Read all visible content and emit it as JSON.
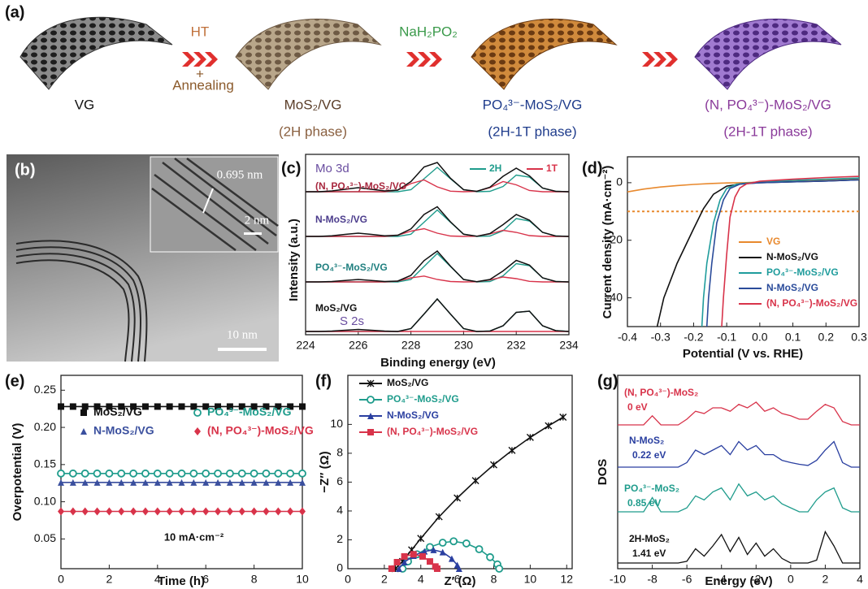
{
  "scheme": {
    "label": "(a)",
    "steps": [
      {
        "name": "VG"
      },
      {
        "name": "MoS₂/VG",
        "phase": "(2H phase)"
      },
      {
        "name": "PO₄³⁻-MoS₂/VG",
        "phase": "(2H-1T phase)"
      },
      {
        "name": "(N, PO₄³⁻)-MoS₂/VG",
        "phase": "(2H-1T phase)"
      }
    ],
    "conditions": [
      {
        "top": "HT",
        "plus": "+",
        "bottom": "Annealing"
      },
      {
        "top": "NaH₂PO₂"
      }
    ]
  },
  "tem": {
    "label": "(b)",
    "lattice": "0.695 nm",
    "inset_scale": "2 nm",
    "scale": "10 nm"
  },
  "chart_data": [
    {
      "type": "spectra",
      "label": "(c)",
      "xlabel": "Binding energy (eV)",
      "ylabel": "Intensity (a.u.)",
      "annotations": [
        "Mo 3d",
        "S 2s"
      ],
      "xlim": [
        224,
        234
      ],
      "xticks": [
        224,
        226,
        228,
        230,
        232,
        234
      ],
      "x": [
        224,
        224.5,
        225,
        225.5,
        226,
        226.5,
        227,
        227.5,
        228,
        228.5,
        229,
        229.5,
        230,
        230.5,
        231,
        231.5,
        232,
        232.5,
        233,
        233.5,
        234
      ],
      "legend": [
        {
          "name": "2H",
          "color": "#1f9c8c"
        },
        {
          "name": "1T",
          "color": "#d8334a"
        }
      ],
      "envelope_color": "#111111",
      "spectra": [
        {
          "label": "(N, PO₄³⁻)-MoS₂/VG",
          "label_color": "#a8283f",
          "values": [
            0,
            0,
            0.2,
            0.6,
            1,
            0.6,
            0.2,
            0.4,
            2.5,
            6.1,
            7.2,
            3.35,
            0.5,
            0.1,
            1.1,
            3.8,
            5.8,
            3.9,
            0.9,
            0.1,
            0
          ],
          "2H": [
            0,
            0,
            0,
            0,
            0,
            0,
            0,
            0,
            0.5,
            3.2,
            6,
            3.2,
            0.5,
            0,
            0.1,
            1.3,
            4.1,
            3.6,
            0.9,
            0.1,
            0
          ],
          "1T": [
            0,
            0,
            0,
            0,
            0,
            0,
            0,
            0.4,
            2.0,
            2.9,
            1.2,
            0.15,
            0,
            0.1,
            1.0,
            2.5,
            1.7,
            0.3,
            0,
            0,
            0
          ]
        },
        {
          "label": "N-MoS₂/VG",
          "label_color": "#4b3c8c",
          "values": [
            0,
            0,
            0.15,
            0.5,
            0.8,
            0.5,
            0.15,
            0.3,
            1.85,
            5.4,
            7.3,
            3.6,
            0.55,
            0.05,
            0.7,
            2.9,
            5.4,
            4.0,
            1.0,
            0.1,
            0
          ],
          "2H": [
            0,
            0,
            0,
            0,
            0,
            0,
            0,
            0,
            0.55,
            3.5,
            6.5,
            3.5,
            0.55,
            0,
            0.1,
            1.4,
            4.4,
            3.8,
            1.0,
            0.1,
            0
          ],
          "1T": [
            0,
            0,
            0,
            0,
            0,
            0,
            0,
            0.3,
            1.3,
            1.9,
            0.8,
            0.1,
            0,
            0.05,
            0.6,
            1.5,
            1.0,
            0.2,
            0,
            0,
            0
          ]
        },
        {
          "label": "PO₄³⁻-MoS₂/VG",
          "label_color": "#1f7f7f",
          "values": [
            0,
            0,
            0.1,
            0.35,
            0.6,
            0.35,
            0.1,
            0.2,
            1.6,
            5.25,
            7.6,
            3.9,
            0.6,
            0.05,
            0.6,
            2.7,
            5.3,
            4.15,
            1.0,
            0.1,
            0
          ],
          "2H": [
            0,
            0,
            0,
            0,
            0,
            0,
            0,
            0,
            0.6,
            3.8,
            7,
            3.8,
            0.6,
            0,
            0.1,
            1.5,
            4.5,
            4.0,
            1.0,
            0.1,
            0
          ],
          "1T": [
            0,
            0,
            0,
            0,
            0,
            0,
            0,
            0.2,
            1.0,
            1.45,
            0.6,
            0.1,
            0,
            0.05,
            0.5,
            1.2,
            0.8,
            0.15,
            0,
            0,
            0
          ]
        },
        {
          "label": "MoS₂/VG",
          "label_color": "#111111",
          "values": [
            0,
            0,
            0.1,
            0.3,
            0.5,
            0.3,
            0.1,
            0,
            0.7,
            4.3,
            8,
            4.3,
            0.7,
            0,
            0.1,
            1.4,
            4.7,
            5.0,
            1.4,
            0.2,
            0
          ],
          "2H": [
            0,
            0,
            0,
            0,
            0,
            0,
            0,
            0,
            0.7,
            4.3,
            8,
            4.3,
            0.7,
            0,
            0.1,
            1.4,
            4.7,
            5.0,
            1.4,
            0.2,
            0
          ],
          "1T": [
            0,
            0,
            0,
            0,
            0,
            0,
            0,
            0,
            0,
            0,
            0,
            0,
            0,
            0,
            0,
            0,
            0,
            0,
            0,
            0,
            0
          ]
        }
      ]
    },
    {
      "type": "line",
      "label": "(d)",
      "xlabel": "Potential (V vs. RHE)",
      "ylabel": "Current density (mA·cm⁻²)",
      "xlim": [
        -0.4,
        0.3
      ],
      "xticks": [
        -0.4,
        -0.3,
        -0.2,
        -0.1,
        {
          "value": 0,
          "label": "0.0"
        },
        0.1,
        0.2,
        0.3
      ],
      "ylim": [
        -50,
        9
      ],
      "yticks": [
        -40,
        -20,
        0
      ],
      "legend": "lower right",
      "reference_line": {
        "y": -10,
        "color": "#e8892e"
      },
      "series": [
        {
          "name": "VG",
          "color": "#e8892e",
          "x": [
            -0.4,
            -0.35,
            -0.3,
            -0.25,
            -0.2,
            -0.15,
            -0.1,
            -0.05,
            0,
            0.05,
            0.1,
            0.15,
            0.2,
            0.25,
            0.3
          ],
          "values": [
            -3.2,
            -2.2,
            -1.5,
            -1.0,
            -0.6,
            -0.3,
            -0.1,
            0,
            0.2,
            0.4,
            0.6,
            0.8,
            1,
            1.2,
            1.4
          ]
        },
        {
          "name": "N-MoS₂/VG",
          "color": "#111111",
          "x": [
            -0.31,
            -0.29,
            -0.25,
            -0.2,
            -0.17,
            -0.14,
            -0.1,
            -0.05,
            0,
            0.1,
            0.2,
            0.3
          ],
          "values": [
            -50,
            -40,
            -28,
            -16,
            -9,
            -4,
            -1.2,
            -0.3,
            0,
            0.3,
            0.6,
            1.0
          ]
        },
        {
          "name": "PO₄³⁻-MoS₂/VG",
          "color": "#1f9c9c",
          "x": [
            -0.175,
            -0.17,
            -0.16,
            -0.14,
            -0.12,
            -0.1,
            -0.07,
            0,
            0.1,
            0.2,
            0.3
          ],
          "values": [
            -50,
            -40,
            -28,
            -14,
            -6,
            -2,
            -0.5,
            0.3,
            0.8,
            1.2,
            1.6
          ]
        },
        {
          "name": "N-MoS₂/VG",
          "color": "#2a4b9a",
          "x": [
            -0.16,
            -0.155,
            -0.145,
            -0.13,
            -0.11,
            -0.09,
            -0.06,
            0,
            0.1,
            0.2,
            0.3
          ],
          "values": [
            -50,
            -40,
            -28,
            -14,
            -6,
            -2,
            -0.5,
            0,
            0.3,
            0.6,
            1.0
          ]
        },
        {
          "name": "(N, PO₄³⁻)-MoS₂/VG",
          "color": "#d8334a",
          "x": [
            -0.115,
            -0.11,
            -0.1,
            -0.09,
            -0.075,
            -0.06,
            -0.04,
            0,
            0.1,
            0.2,
            0.3
          ],
          "values": [
            -50,
            -40,
            -25,
            -12,
            -5,
            -1.8,
            -0.4,
            0.5,
            1.2,
            1.8,
            2.2
          ]
        }
      ]
    },
    {
      "type": "line",
      "label": "(e)",
      "xlabel": "Time (h)",
      "ylabel": "Overpotential (V)",
      "annotation": "10 mA·cm⁻²",
      "xlim": [
        0,
        10
      ],
      "xticks": [
        0,
        2,
        4,
        6,
        8,
        10
      ],
      "ylim": [
        0.01,
        0.27
      ],
      "yticks": [
        0.05,
        {
          "value": 0.1,
          "label": "0.10"
        },
        0.15,
        {
          "value": 0.2,
          "label": "0.20"
        },
        0.25
      ],
      "legend": "upper left",
      "legend_columns": 2,
      "x": [
        0,
        0.5,
        1,
        1.5,
        2,
        2.5,
        3,
        3.5,
        4,
        4.5,
        5,
        5.5,
        6,
        6.5,
        7,
        7.5,
        8,
        8.5,
        9,
        9.5,
        10
      ],
      "series": [
        {
          "name": "MoS₂/VG",
          "color": "#111111",
          "marker": "square",
          "values": [
            0.228,
            0.228,
            0.228,
            0.228,
            0.228,
            0.228,
            0.228,
            0.228,
            0.228,
            0.228,
            0.228,
            0.228,
            0.228,
            0.228,
            0.228,
            0.228,
            0.228,
            0.228,
            0.228,
            0.228,
            0.228
          ]
        },
        {
          "name": "PO₄³⁻-MoS₂/VG",
          "color": "#1f9c8c",
          "marker": "circle",
          "values": [
            0.138,
            0.138,
            0.138,
            0.138,
            0.138,
            0.138,
            0.138,
            0.138,
            0.138,
            0.138,
            0.138,
            0.138,
            0.138,
            0.138,
            0.138,
            0.138,
            0.138,
            0.138,
            0.138,
            0.138,
            0.138
          ]
        },
        {
          "name": "N-MoS₂/VG",
          "color": "#3a4f9e",
          "marker": "triangle",
          "values": [
            0.126,
            0.126,
            0.126,
            0.126,
            0.126,
            0.126,
            0.126,
            0.126,
            0.126,
            0.126,
            0.126,
            0.126,
            0.126,
            0.126,
            0.126,
            0.126,
            0.126,
            0.126,
            0.126,
            0.126,
            0.126
          ]
        },
        {
          "name": "(N, PO₄³⁻)-MoS₂/VG",
          "color": "#d8334a",
          "marker": "diamond",
          "values": [
            0.087,
            0.087,
            0.087,
            0.087,
            0.087,
            0.087,
            0.087,
            0.087,
            0.087,
            0.087,
            0.087,
            0.087,
            0.087,
            0.087,
            0.087,
            0.087,
            0.087,
            0.087,
            0.087,
            0.087,
            0.087
          ]
        }
      ]
    },
    {
      "type": "line",
      "label": "(f)",
      "xlabel": "Z′ (Ω)",
      "ylabel": "−Z″ (Ω)",
      "xlim": [
        0,
        12.3
      ],
      "xticks": [
        0,
        2,
        4,
        6,
        8,
        10,
        12
      ],
      "ylim": [
        0,
        13.4
      ],
      "yticks": [
        0,
        2,
        4,
        6,
        8,
        10
      ],
      "legend": "upper left",
      "series": [
        {
          "name": "MoS₂/VG",
          "color": "#111111",
          "marker": "cross",
          "x": [
            2.6,
            3,
            3.5,
            4,
            5,
            6,
            7,
            8,
            9,
            10,
            11,
            11.8
          ],
          "values": [
            0,
            0.5,
            1.3,
            2.1,
            3.6,
            4.9,
            6.1,
            7.2,
            8.2,
            9.1,
            9.9,
            10.5
          ]
        },
        {
          "name": "PO₄³⁻-MoS₂/VG",
          "color": "#1f9c8c",
          "marker": "circle",
          "x": [
            3,
            3.3,
            3.8,
            4.5,
            5.2,
            5.8,
            6.5,
            7.2,
            7.8,
            8.2,
            8.3
          ],
          "values": [
            0,
            0.5,
            1.0,
            1.5,
            1.8,
            1.9,
            1.75,
            1.35,
            0.8,
            0.3,
            0
          ]
        },
        {
          "name": "N-MoS₂/VG",
          "color": "#2a3fa0",
          "marker": "triangle",
          "x": [
            2.8,
            3.1,
            3.6,
            4.2,
            4.7,
            5.2,
            5.7,
            6.0,
            6.1
          ],
          "values": [
            0,
            0.45,
            0.9,
            1.2,
            1.3,
            1.15,
            0.7,
            0.25,
            0
          ]
        },
        {
          "name": "(N, PO₄³⁻)-MoS₂/VG",
          "color": "#d8334a",
          "marker": "square",
          "x": [
            2.4,
            2.7,
            3.1,
            3.6,
            4.1,
            4.5,
            4.8,
            4.9
          ],
          "values": [
            0,
            0.45,
            0.85,
            1.0,
            0.85,
            0.5,
            0.15,
            0
          ]
        }
      ]
    },
    {
      "type": "dos",
      "label": "(g)",
      "xlabel": "Energy (eV)",
      "ylabel": "DOS",
      "xlim": [
        -10,
        4
      ],
      "xticks": [
        -10,
        -8,
        -6,
        -4,
        -2,
        0,
        2,
        4
      ],
      "x": [
        -10,
        -9.5,
        -9,
        -8.5,
        -8,
        -7.5,
        -7,
        -6.5,
        -6,
        -5.5,
        -5,
        -4.5,
        -4,
        -3.5,
        -3,
        -2.5,
        -2,
        -1.5,
        -1,
        -0.5,
        0,
        0.5,
        1,
        1.5,
        2,
        2.5,
        3,
        3.5,
        4
      ],
      "spectra": [
        {
          "label": "(N, PO₄³⁻)-MoS₂",
          "gap": "0 eV",
          "color": "#d8334a",
          "values": [
            0,
            0,
            0,
            0,
            1.6,
            0,
            0,
            0,
            1,
            2.4,
            2,
            3,
            3,
            2.4,
            3.6,
            3,
            4,
            2.4,
            3,
            2,
            1.6,
            1,
            1,
            2.4,
            3.6,
            3,
            0.6,
            0,
            0
          ]
        },
        {
          "label": "N-MoS₂",
          "gap": "0.22 eV",
          "color": "#2a3fa0",
          "values": [
            0,
            0,
            0,
            0,
            0,
            0,
            0,
            0,
            0.8,
            3,
            2.2,
            3,
            3.8,
            2.2,
            4.5,
            3,
            3.8,
            2.2,
            2.2,
            1.2,
            0.8,
            0.5,
            0.3,
            1.2,
            3,
            4.5,
            0.8,
            0,
            0
          ]
        },
        {
          "label": "PO₄³⁻-MoS₂",
          "gap": "0.85 eV",
          "color": "#1f9c8c",
          "values": [
            0,
            0,
            0,
            0,
            2.5,
            0,
            0,
            0,
            0.7,
            2.8,
            2.1,
            3.5,
            4.2,
            2.1,
            4.9,
            2.8,
            3.5,
            2.1,
            2.8,
            1.4,
            0.7,
            0,
            0,
            2.1,
            3.5,
            4.2,
            0.7,
            0,
            0
          ]
        },
        {
          "label": "2H-MoS₂",
          "gap": "1.41 eV",
          "color": "#111111",
          "values": [
            0,
            0,
            0,
            0,
            0,
            0,
            0,
            0,
            0.3,
            2.5,
            1.2,
            3,
            5,
            2,
            4.5,
            1.5,
            3.5,
            1.2,
            2.5,
            0.8,
            0,
            0,
            0,
            0.5,
            5.5,
            3,
            0,
            0,
            0
          ]
        }
      ]
    }
  ]
}
